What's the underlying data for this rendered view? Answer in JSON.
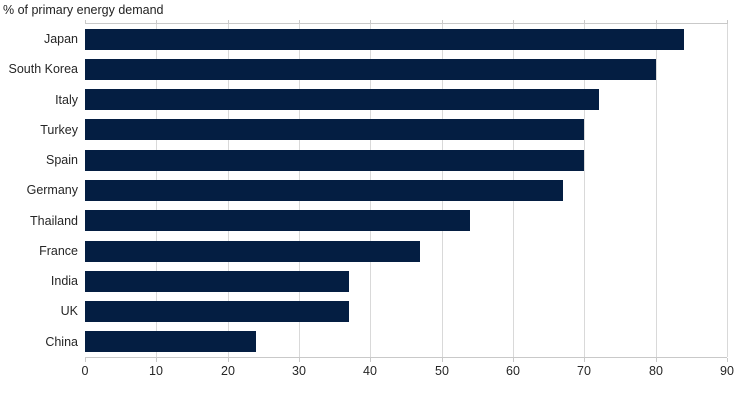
{
  "chart_data": {
    "type": "bar",
    "orientation": "horizontal",
    "title": "% of primary energy demand",
    "categories": [
      "Japan",
      "South Korea",
      "Italy",
      "Turkey",
      "Spain",
      "Germany",
      "Thailand",
      "France",
      "India",
      "UK",
      "China"
    ],
    "values": [
      84,
      80,
      72,
      70,
      70,
      67,
      54,
      47,
      37,
      37,
      24
    ],
    "xlabel": "",
    "ylabel": "",
    "xlim": [
      0,
      90
    ],
    "xticks": [
      0,
      10,
      20,
      30,
      40,
      50,
      60,
      70,
      80,
      90
    ],
    "grid": "vertical",
    "legend": "none",
    "colors": {
      "bar": "#041e42",
      "gridline": "#d9d9d9",
      "axis_line": "#c9c9c9",
      "text": "#262626",
      "title_text": "#222222",
      "background": "#ffffff"
    }
  }
}
